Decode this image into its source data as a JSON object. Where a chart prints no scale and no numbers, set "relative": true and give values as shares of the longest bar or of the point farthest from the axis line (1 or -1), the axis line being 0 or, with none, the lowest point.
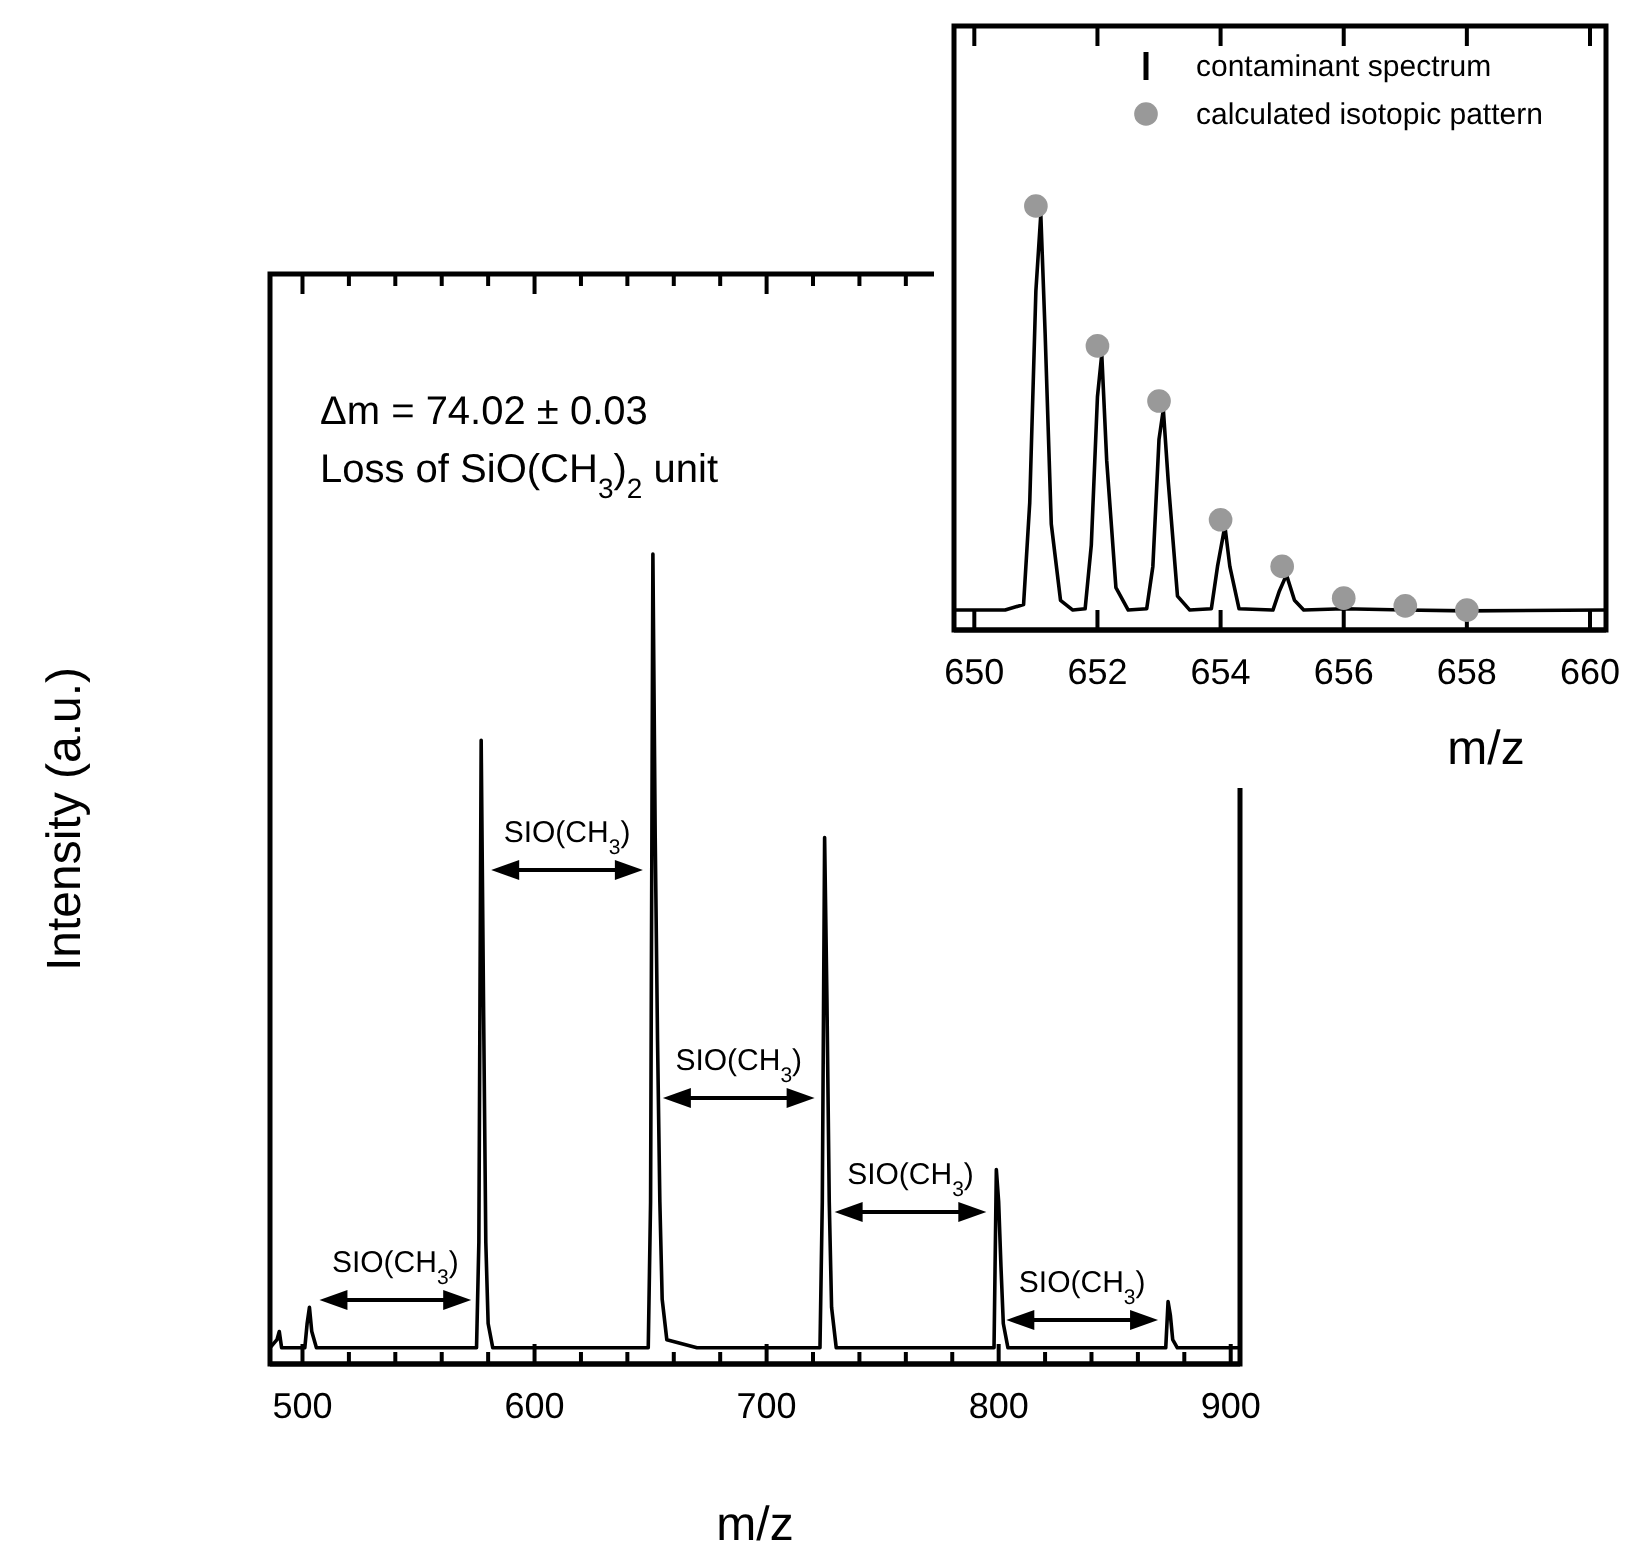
{
  "chart_data": [
    {
      "type": "line",
      "xlabel": "m/z",
      "ylabel": "Intensity (a.u.)",
      "relative": true,
      "xlim": [
        486,
        904
      ],
      "xticks": [
        500,
        {
          "value": 520,
          "label": null
        },
        {
          "value": 540,
          "label": null
        },
        {
          "value": 560,
          "label": null
        },
        {
          "value": 580,
          "label": null
        },
        600,
        {
          "value": 620,
          "label": null
        },
        {
          "value": 640,
          "label": null
        },
        {
          "value": 660,
          "label": null
        },
        {
          "value": 680,
          "label": null
        },
        700,
        {
          "value": 720,
          "label": null
        },
        {
          "value": 740,
          "label": null
        },
        {
          "value": 760,
          "label": null
        },
        {
          "value": 780,
          "label": null
        },
        800,
        {
          "value": 820,
          "label": null
        },
        {
          "value": 840,
          "label": null
        },
        {
          "value": 860,
          "label": null
        },
        {
          "value": 880,
          "label": null
        },
        900
      ],
      "tick_labels": "x",
      "legend": false,
      "series": [
        {
          "color": "#000000",
          "x": [
            486,
            489,
            490,
            491,
            495,
            501,
            502,
            503,
            504,
            506,
            520,
            540,
            560,
            575,
            576,
            577,
            578,
            579,
            580,
            582,
            600,
            620,
            640,
            649,
            650,
            651,
            652,
            653,
            654,
            655,
            657,
            670,
            690,
            710,
            723,
            724,
            725,
            726,
            727,
            728,
            730,
            750,
            770,
            790,
            798,
            799,
            800,
            801,
            802,
            804,
            820,
            840,
            860,
            872,
            873,
            874,
            875,
            877,
            890,
            904
          ],
          "values": [
            0.02,
            0.03,
            0.04,
            0.02,
            0.02,
            0.02,
            0.05,
            0.07,
            0.04,
            0.02,
            0.02,
            0.02,
            0.02,
            0.02,
            0.15,
            0.77,
            0.45,
            0.15,
            0.05,
            0.02,
            0.02,
            0.02,
            0.02,
            0.02,
            0.2,
            1,
            0.65,
            0.4,
            0.2,
            0.08,
            0.03,
            0.02,
            0.02,
            0.02,
            0.02,
            0.2,
            0.65,
            0.45,
            0.2,
            0.07,
            0.02,
            0.02,
            0.02,
            0.02,
            0.02,
            0.24,
            0.2,
            0.12,
            0.05,
            0.02,
            0.02,
            0.02,
            0.02,
            0.02,
            0.077,
            0.06,
            0.03,
            0.02,
            0.02,
            0.02
          ]
        }
      ],
      "annotations": [
        "Δm = 74.02 ± 0.03",
        "Loss of SiO(CH$_{3}$)$_{2}$ unit",
        "SIO(CH$_{3}$)",
        "SIO(CH$_{3}$)",
        "SIO(CH$_{3}$)",
        "SIO(CH$_{3}$)",
        "SIO(CH$_{3}$)"
      ]
    },
    {
      "type": "line",
      "xlabel": "m/z",
      "relative": true,
      "xlim": [
        649.67,
        660.26
      ],
      "xticks": [
        650,
        652,
        654,
        656,
        658,
        660
      ],
      "tick_labels": "x",
      "legend": "top right",
      "marker": "none",
      "series": [
        {
          "name": "contaminant spectrum",
          "color": "#000000",
          "x": [
            649.67,
            650.5,
            650.8,
            650.9,
            651.0,
            651.08,
            651.15,
            651.25,
            651.4,
            651.6,
            651.8,
            651.9,
            652.0,
            652.07,
            652.15,
            652.3,
            652.5,
            652.8,
            652.9,
            653.0,
            653.07,
            653.15,
            653.3,
            653.5,
            653.85,
            653.95,
            654.07,
            654.15,
            654.3,
            654.85,
            654.95,
            655.07,
            655.2,
            655.35,
            656,
            657,
            658,
            660.26
          ],
          "values": [
            0.047,
            0.047,
            0.06,
            0.3,
            0.8,
            0.98,
            0.7,
            0.25,
            0.07,
            0.047,
            0.05,
            0.2,
            0.55,
            0.65,
            0.4,
            0.1,
            0.047,
            0.05,
            0.15,
            0.45,
            0.52,
            0.35,
            0.08,
            0.047,
            0.05,
            0.15,
            0.245,
            0.15,
            0.05,
            0.047,
            0.09,
            0.13,
            0.07,
            0.047,
            0.05,
            0.047,
            0.045,
            0.047
          ]
        },
        {
          "name": "calculated isotopic pattern",
          "type": "scatter",
          "marker": "circle",
          "color": "#999999",
          "x": [
            651,
            652,
            653,
            654,
            655,
            656,
            657,
            658
          ],
          "values": [
            1,
            0.67,
            0.54,
            0.26,
            0.15,
            0.075,
            0.057,
            0.047
          ]
        }
      ]
    }
  ]
}
